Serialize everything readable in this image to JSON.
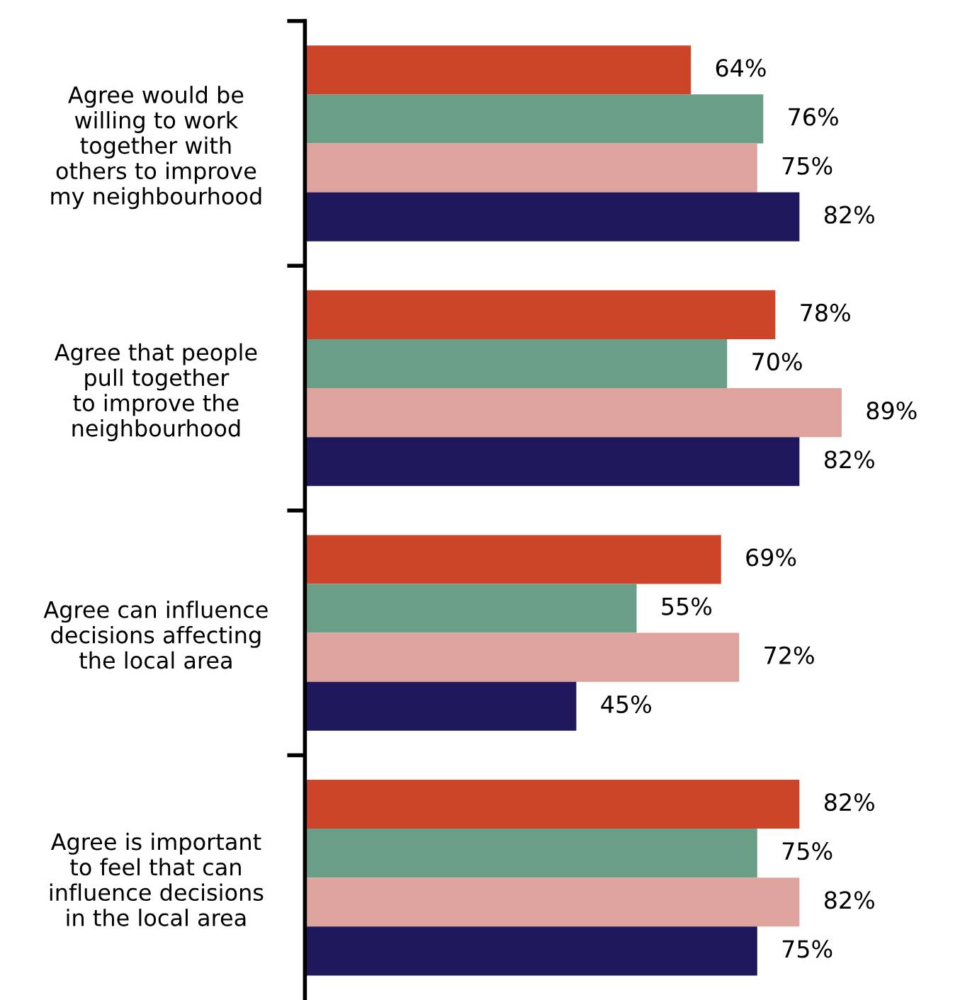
{
  "chart_data": {
    "type": "bar",
    "orientation": "horizontal",
    "categories": [
      "Agree would be\nwilling to work\ntogether with\nothers to improve\nmy neighbourhood",
      "Agree that people\npull together\nto improve the\nneighbourhood",
      "Agree can influence\ndecisions affecting\nthe local area",
      "Agree is important\nto feel that can\ninfluence decisions\nin the local area"
    ],
    "series": [
      {
        "color": "#cc4529",
        "values": [
          64,
          78,
          69,
          82
        ],
        "value_labels": [
          "64%",
          "78%",
          "69%",
          "82%"
        ]
      },
      {
        "color": "#6a9e86",
        "values": [
          76,
          70,
          55,
          75
        ],
        "value_labels": [
          "76%",
          "70%",
          "55%",
          "75%"
        ]
      },
      {
        "color": "#dfa39e",
        "values": [
          75,
          89,
          72,
          82
        ],
        "value_labels": [
          "75%",
          "89%",
          "72%",
          "82%"
        ]
      },
      {
        "color": "#1f185c",
        "values": [
          82,
          82,
          45,
          75
        ],
        "value_labels": [
          "82%",
          "82%",
          "45%",
          "75%"
        ]
      }
    ],
    "grid": false,
    "legend": false,
    "tick_labels": "y"
  }
}
